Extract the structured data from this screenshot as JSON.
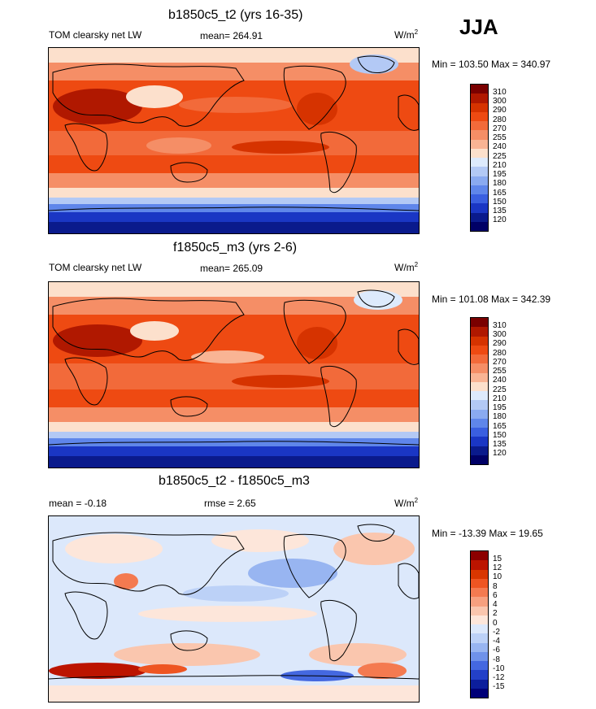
{
  "season": "JJA",
  "panels": [
    {
      "title": "b1850c5_t2 (yrs 16-35)",
      "left_label": "TOM clearsky net LW",
      "center_label": "mean= 264.91",
      "units_base": "W/m",
      "units_exp": "2",
      "minmax": "Min = 103.50 Max = 340.97",
      "kind": "abs",
      "levels": [
        "310",
        "300",
        "290",
        "280",
        "270",
        "255",
        "240",
        "225",
        "210",
        "195",
        "180",
        "165",
        "150",
        "135",
        "120"
      ]
    },
    {
      "title": "f1850c5_m3 (yrs 2-6)",
      "left_label": "TOM clearsky net LW",
      "center_label": "mean= 265.09",
      "units_base": "W/m",
      "units_exp": "2",
      "minmax": "Min = 101.08 Max = 342.39",
      "kind": "abs",
      "levels": [
        "310",
        "300",
        "290",
        "280",
        "270",
        "255",
        "240",
        "225",
        "210",
        "195",
        "180",
        "165",
        "150",
        "135",
        "120"
      ]
    },
    {
      "title": "b1850c5_t2 - f1850c5_m3",
      "left_label": "mean =  -0.18",
      "center_label": "rmse =   2.65",
      "units_base": "W/m",
      "units_exp": "2",
      "minmax": "Min = -13.39 Max =  19.65",
      "kind": "diff",
      "levels": [
        "15",
        "12",
        "10",
        "8",
        "6",
        "4",
        "2",
        "0",
        "-2",
        "-4",
        "-6",
        "-8",
        "-10",
        "-12",
        "-15"
      ]
    }
  ],
  "colors": {
    "abs": [
      "#7a0000",
      "#b01800",
      "#d63300",
      "#ee4a12",
      "#f26a3a",
      "#f58e66",
      "#f9b494",
      "#fce0cc",
      "#ddeafc",
      "#b3c9f5",
      "#8aaaf0",
      "#5f86ea",
      "#3a5fe0",
      "#1a36c4",
      "#0a1a8c",
      "#000066"
    ],
    "diff": [
      "#8c0000",
      "#bc1400",
      "#d93600",
      "#ee5522",
      "#f47a50",
      "#f7a07f",
      "#fac6ae",
      "#fde6da",
      "#dce8fb",
      "#bcd1f7",
      "#98b5f1",
      "#6f92ea",
      "#4468e0",
      "#2340c8",
      "#0c1e9c",
      "#000078"
    ]
  }
}
